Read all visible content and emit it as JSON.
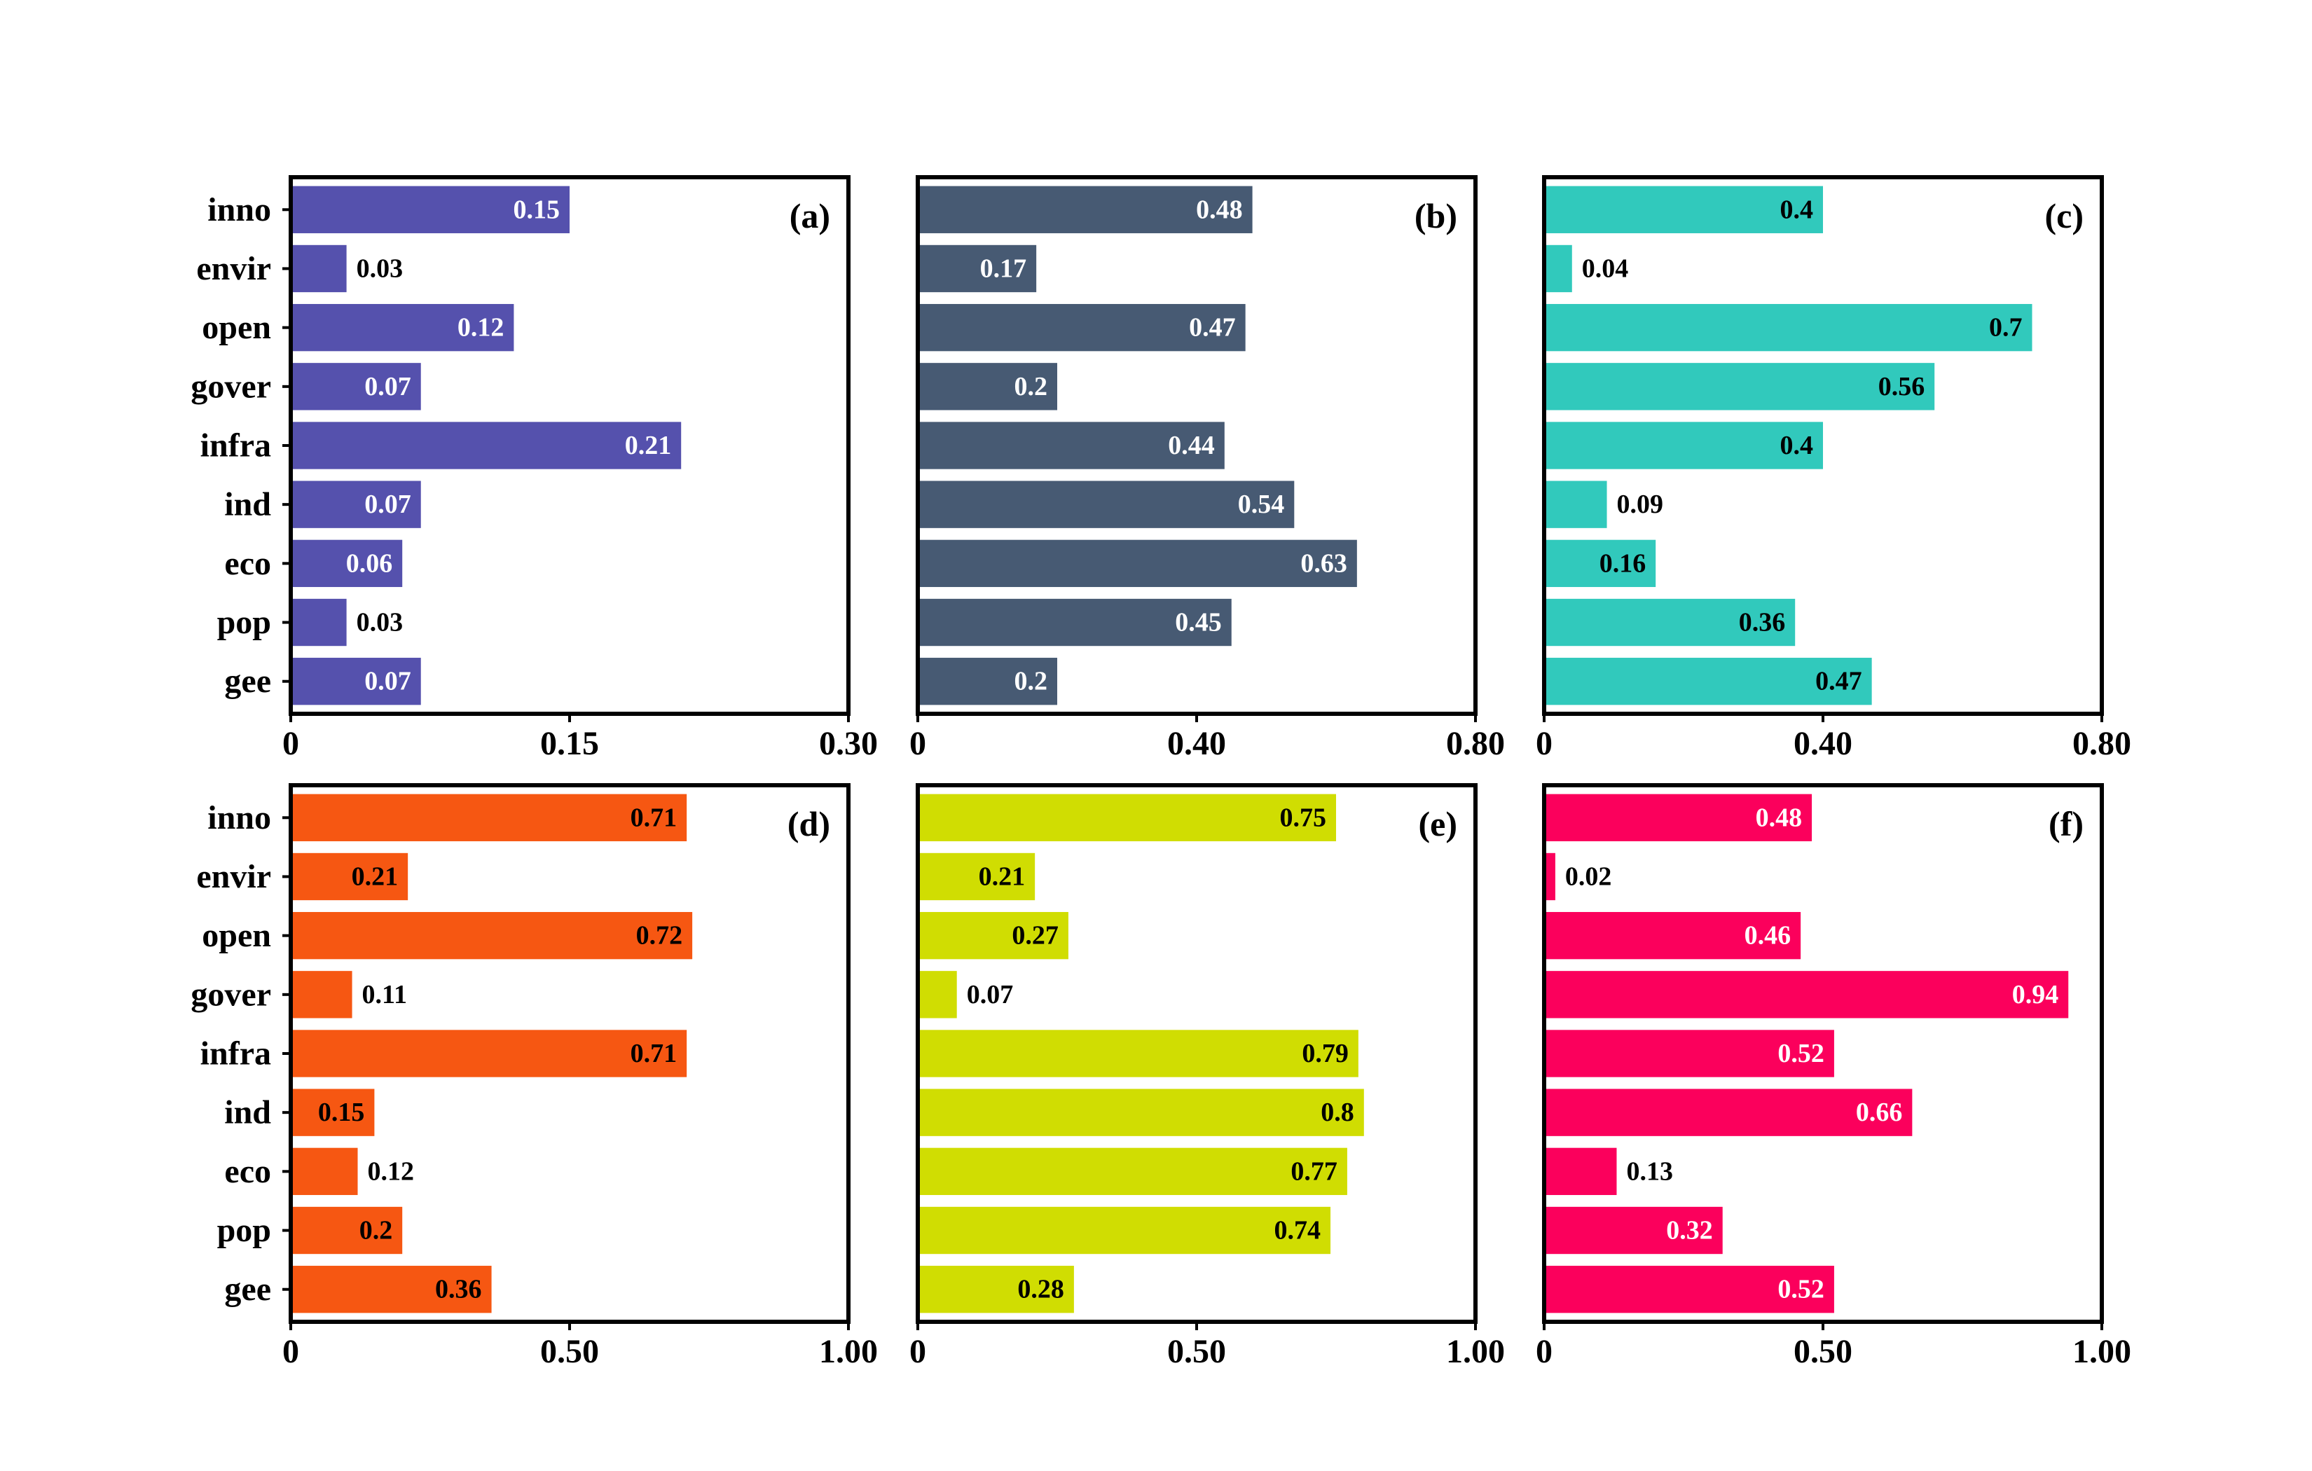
{
  "chart_data": [
    {
      "type": "bar",
      "orientation": "horizontal",
      "panel": "(a)",
      "categories": [
        "inno",
        "envir",
        "open",
        "gover",
        "infra",
        "ind",
        "eco",
        "pop",
        "gee"
      ],
      "values": [
        0.15,
        0.03,
        0.12,
        0.07,
        0.21,
        0.07,
        0.06,
        0.03,
        0.07
      ],
      "value_labels": [
        "0.15",
        "0.03",
        "0.12",
        "0.07",
        "0.21",
        "0.07",
        "0.06",
        "0.03",
        "0.07"
      ],
      "xlim": [
        0,
        0.3
      ],
      "xticks": [
        0,
        0.15,
        0.3
      ],
      "xtick_labels": [
        "0",
        "0.15",
        "0.30"
      ],
      "color": "#5551AD",
      "label_color_inside": "#ffffff"
    },
    {
      "type": "bar",
      "orientation": "horizontal",
      "panel": "(b)",
      "categories": [
        "inno",
        "envir",
        "open",
        "gover",
        "infra",
        "ind",
        "eco",
        "pop",
        "gee"
      ],
      "values": [
        0.48,
        0.17,
        0.47,
        0.2,
        0.44,
        0.54,
        0.63,
        0.45,
        0.2
      ],
      "value_labels": [
        "0.48",
        "0.17",
        "0.47",
        "0.2",
        "0.44",
        "0.54",
        "0.63",
        "0.45",
        "0.2"
      ],
      "xlim": [
        0,
        0.8
      ],
      "xticks": [
        0,
        0.4,
        0.8
      ],
      "xtick_labels": [
        "0",
        "0.40",
        "0.80"
      ],
      "color": "#475A73",
      "label_color_inside": "#ffffff"
    },
    {
      "type": "bar",
      "orientation": "horizontal",
      "panel": "(c)",
      "categories": [
        "inno",
        "envir",
        "open",
        "gover",
        "infra",
        "ind",
        "eco",
        "pop",
        "gee"
      ],
      "values": [
        0.4,
        0.04,
        0.7,
        0.56,
        0.4,
        0.09,
        0.16,
        0.36,
        0.47
      ],
      "value_labels": [
        "0.4",
        "0.04",
        "0.7",
        "0.56",
        "0.4",
        "0.09",
        "0.16",
        "0.36",
        "0.47"
      ],
      "xlim": [
        0,
        0.8
      ],
      "xticks": [
        0,
        0.4,
        0.8
      ],
      "xtick_labels": [
        "0",
        "0.40",
        "0.80"
      ],
      "color": "#31C9BC",
      "label_color_inside": "#000000"
    },
    {
      "type": "bar",
      "orientation": "horizontal",
      "panel": "(d)",
      "categories": [
        "inno",
        "envir",
        "open",
        "gover",
        "infra",
        "ind",
        "eco",
        "pop",
        "gee"
      ],
      "values": [
        0.71,
        0.21,
        0.72,
        0.11,
        0.71,
        0.15,
        0.12,
        0.2,
        0.36
      ],
      "value_labels": [
        "0.71",
        "0.21",
        "0.72",
        "0.11",
        "0.71",
        "0.15",
        "0.12",
        "0.2",
        "0.36"
      ],
      "xlim": [
        0,
        1.0
      ],
      "xticks": [
        0,
        0.5,
        1.0
      ],
      "xtick_labels": [
        "0",
        "0.50",
        "1.00"
      ],
      "color": "#F65712",
      "label_color_inside": "#000000"
    },
    {
      "type": "bar",
      "orientation": "horizontal",
      "panel": "(e)",
      "categories": [
        "inno",
        "envir",
        "open",
        "gover",
        "infra",
        "ind",
        "eco",
        "pop",
        "gee"
      ],
      "values": [
        0.75,
        0.21,
        0.27,
        0.07,
        0.79,
        0.8,
        0.77,
        0.74,
        0.28
      ],
      "value_labels": [
        "0.75",
        "0.21",
        "0.27",
        "0.07",
        "0.79",
        "0.8",
        "0.77",
        "0.74",
        "0.28"
      ],
      "xlim": [
        0,
        1.0
      ],
      "xticks": [
        0,
        0.5,
        1.0
      ],
      "xtick_labels": [
        "0",
        "0.50",
        "1.00"
      ],
      "color": "#D0DD02",
      "label_color_inside": "#000000"
    },
    {
      "type": "bar",
      "orientation": "horizontal",
      "panel": "(f)",
      "categories": [
        "inno",
        "envir",
        "open",
        "gover",
        "infra",
        "ind",
        "eco",
        "pop",
        "gee"
      ],
      "values": [
        0.48,
        0.02,
        0.46,
        0.94,
        0.52,
        0.66,
        0.13,
        0.32,
        0.52
      ],
      "value_labels": [
        "0.48",
        "0.02",
        "0.46",
        "0.94",
        "0.52",
        "0.66",
        "0.13",
        "0.32",
        "0.52"
      ],
      "xlim": [
        0,
        1.0
      ],
      "xticks": [
        0,
        0.5,
        1.0
      ],
      "xtick_labels": [
        "0",
        "0.50",
        "1.00"
      ],
      "color": "#FB005C",
      "label_color_inside": "#ffffff"
    }
  ]
}
